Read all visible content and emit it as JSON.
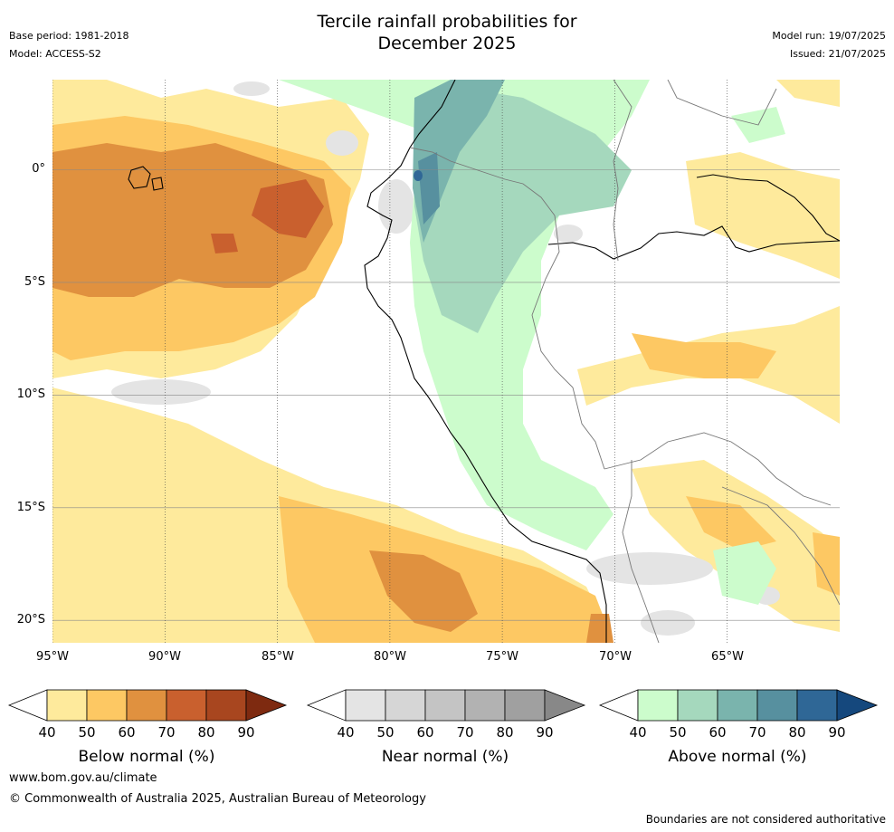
{
  "title_line1": "Tercile rainfall probabilities for",
  "title_line2": "December 2025",
  "base_period": "Base period: 1981-2018",
  "model": "Model: ACCESS-S2",
  "model_run": "Model run: 19/07/2025",
  "issued": "Issued: 21/07/2025",
  "lat_labels": [
    "0°",
    "5°S",
    "10°S",
    "15°S",
    "20°S"
  ],
  "lon_labels": [
    "95°W",
    "90°W",
    "85°W",
    "80°W",
    "75°W",
    "70°W",
    "65°W"
  ],
  "colorbars": [
    {
      "title": "Below normal (%)",
      "ticks": [
        "40",
        "50",
        "60",
        "70",
        "80",
        "90"
      ],
      "colors": [
        "#ffffff",
        "#feea9c",
        "#fdc863",
        "#e0913f",
        "#c9602e",
        "#a8461f",
        "#7e2a10"
      ]
    },
    {
      "title": "Near normal (%)",
      "ticks": [
        "40",
        "50",
        "60",
        "70",
        "80",
        "90"
      ],
      "colors": [
        "#ffffff",
        "#e4e4e4",
        "#d6d6d6",
        "#c4c4c4",
        "#b2b2b2",
        "#a0a0a0",
        "#888888"
      ]
    },
    {
      "title": "Above normal (%)",
      "ticks": [
        "40",
        "50",
        "60",
        "70",
        "80",
        "90"
      ],
      "colors": [
        "#ffffff",
        "#ccfccc",
        "#a5d8bd",
        "#7ab4ad",
        "#57909f",
        "#2f6796",
        "#15487d"
      ]
    }
  ],
  "website": "www.bom.gov.au/climate",
  "copyright": "© Commonwealth of Australia 2025, Australian Bureau of Meteorology",
  "disclaimer": "Boundaries are not considered authoritative",
  "map_colors": {
    "below_50": "#feea9c",
    "below_60": "#fdc863",
    "below_70": "#e0913f",
    "below_80": "#c9602e",
    "near_50": "#e4e4e4",
    "above_50": "#ccfccc",
    "above_60": "#a5d8bd",
    "above_70": "#7ab4ad",
    "above_80": "#57909f",
    "above_90": "#2f6796"
  }
}
